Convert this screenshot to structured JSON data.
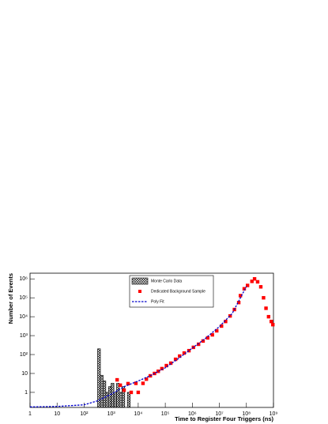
{
  "chart_data": {
    "type": "scatter",
    "x_label": "Time to Register Four Triggers (ns)",
    "y_label": "Number of Events",
    "log_x": true,
    "log_y": true,
    "xlim": [
      1,
      1000000000
    ],
    "ylim": [
      0.16,
      2000000
    ],
    "xticks": [
      1,
      10,
      {
        "value": 100,
        "label": "10²"
      },
      {
        "value": 1000,
        "label": "10³"
      },
      {
        "value": 10000,
        "label": "10⁴"
      },
      {
        "value": 100000,
        "label": "10⁵"
      },
      {
        "value": 1000000,
        "label": "10⁶"
      },
      {
        "value": 10000000,
        "label": "10⁷"
      },
      {
        "value": 100000000,
        "label": "10⁸"
      },
      {
        "value": 1000000000,
        "label": "10⁹"
      }
    ],
    "yticks": [
      1,
      10,
      {
        "value": 100,
        "label": "10²"
      },
      {
        "value": 1000,
        "label": "10³"
      },
      {
        "value": 10000,
        "label": "10⁴"
      },
      {
        "value": 100000,
        "label": "10⁵"
      },
      {
        "value": 1000000,
        "label": "10⁶"
      }
    ],
    "series": [
      {
        "name": "Monte Carlo Data",
        "type": "histogram",
        "color": "#000000",
        "bins": [
          316,
          398,
          501,
          631,
          794,
          1000,
          1259,
          1585,
          1995,
          2512,
          3162,
          3981,
          5012
        ],
        "values": [
          200,
          8,
          4,
          1,
          2,
          3,
          1,
          3,
          1,
          2,
          0,
          1
        ]
      },
      {
        "name": "Dedicated Background Sample",
        "type": "scatter",
        "color": "#ff0000",
        "x": [
          1660,
          2170,
          3000,
          4200,
          5500,
          8200,
          10000,
          15000,
          20000,
          28000,
          40000,
          55000,
          75000,
          110000,
          160000,
          240000,
          340000,
          500000,
          750000,
          1100000,
          1700000,
          2500000,
          3700000,
          5500000,
          8000000,
          12000000,
          17000000,
          25000000,
          36000000,
          52000000,
          60000000,
          83000000,
          110000000,
          160000000,
          200000000,
          260000000,
          340000000,
          430000000,
          530000000,
          660000000,
          830000000,
          950000000
        ],
        "values": [
          4.6,
          2.4,
          1.3,
          2.9,
          1,
          3,
          1,
          3,
          5,
          7.5,
          10,
          13,
          18,
          26,
          35,
          56,
          83,
          120,
          160,
          240,
          350,
          520,
          760,
          1100,
          1800,
          3200,
          5600,
          11000,
          24000,
          56000,
          130000,
          300000,
          450000,
          740000,
          1000000,
          700000,
          380000,
          100000,
          28000,
          10000,
          5600,
          3800
        ]
      },
      {
        "name": "Poly Fit",
        "type": "line",
        "color": "#0000cc",
        "x": [
          1,
          10,
          100,
          300,
          1000,
          3000,
          10000,
          30000,
          100000,
          300000,
          1000000,
          3000000,
          10000000,
          30000000,
          100000000
        ],
        "values": [
          0.17,
          0.18,
          0.22,
          0.35,
          0.8,
          2,
          4,
          8,
          20,
          60,
          220,
          700,
          3000,
          15000,
          400000
        ]
      }
    ]
  }
}
